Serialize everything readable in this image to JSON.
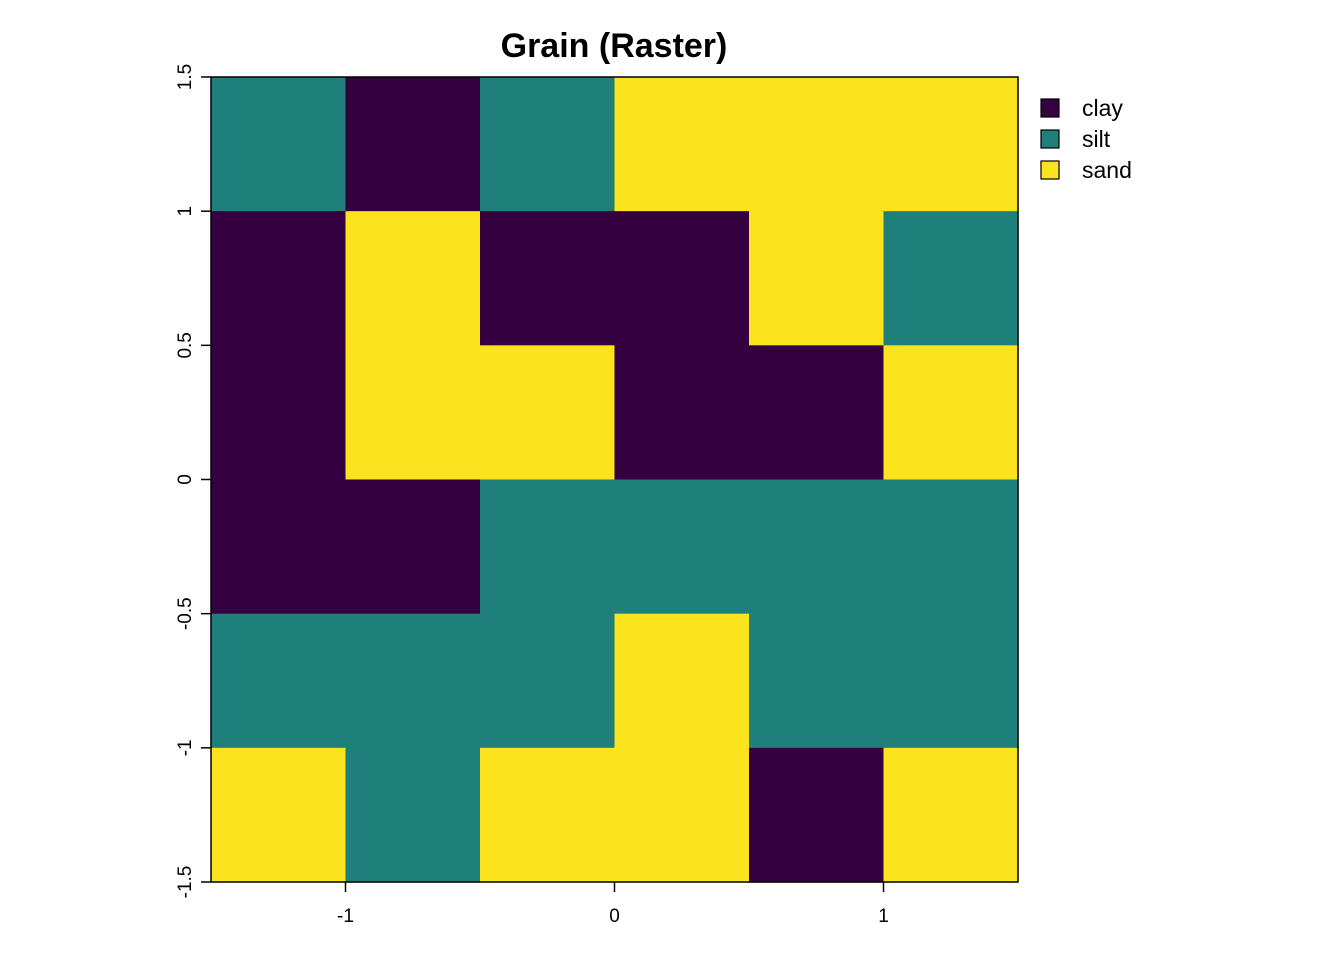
{
  "chart_data": {
    "type": "heatmap",
    "title": "Grain (Raster)",
    "xlabel": "",
    "ylabel": "",
    "xlim": [
      -1.5,
      1.5
    ],
    "ylim": [
      -1.5,
      1.5
    ],
    "x_ticks": [
      "-1",
      "0",
      "1"
    ],
    "x_tick_values": [
      -1,
      0,
      1
    ],
    "y_ticks": [
      "-1.5",
      "-1",
      "-0.5",
      "0",
      "0.5",
      "1",
      "1.5"
    ],
    "y_tick_values": [
      -1.5,
      -1,
      -0.5,
      0,
      0.5,
      1,
      1.5
    ],
    "grid": false,
    "legend_position": "right",
    "categories": [
      {
        "name": "clay",
        "color": "#35003F"
      },
      {
        "name": "silt",
        "color": "#1F7F7A"
      },
      {
        "name": "sand",
        "color": "#FBE31E"
      }
    ],
    "cell_size": 0.5,
    "rows_top_to_bottom": [
      [
        "silt",
        "clay",
        "silt",
        "sand",
        "sand",
        "sand"
      ],
      [
        "clay",
        "sand",
        "clay",
        "clay",
        "sand",
        "silt"
      ],
      [
        "clay",
        "sand",
        "sand",
        "clay",
        "clay",
        "sand"
      ],
      [
        "clay",
        "clay",
        "silt",
        "silt",
        "silt",
        "silt"
      ],
      [
        "silt",
        "silt",
        "silt",
        "sand",
        "silt",
        "silt"
      ],
      [
        "sand",
        "silt",
        "sand",
        "sand",
        "clay",
        "sand"
      ]
    ]
  }
}
